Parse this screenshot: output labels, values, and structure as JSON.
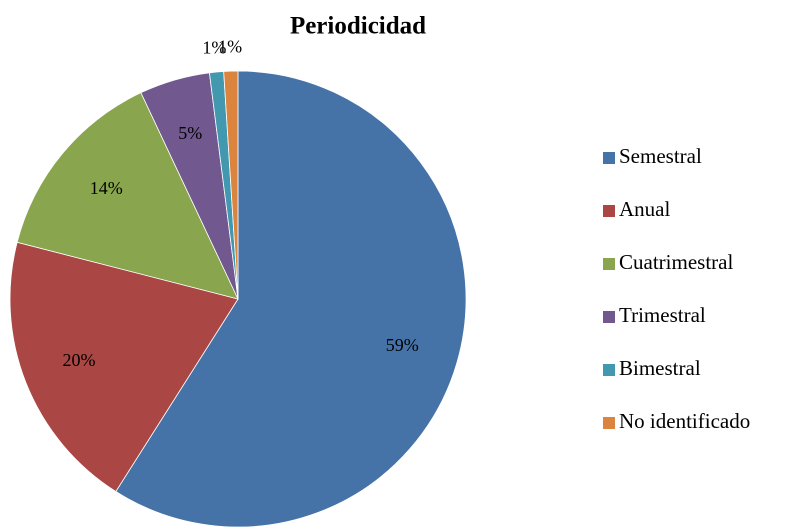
{
  "chart_data": {
    "type": "pie",
    "title": "Periodicidad",
    "categories": [
      "Semestral",
      "Anual",
      "Cuatrimestral",
      "Trimestral",
      "Bimestral",
      "No identificado"
    ],
    "values": [
      59,
      20,
      14,
      5,
      1,
      1
    ],
    "value_labels": [
      "59%",
      "20%",
      "14%",
      "5%",
      "1%",
      "1%"
    ],
    "colors": [
      "#4572a7",
      "#aa4643",
      "#89a54e",
      "#71588f",
      "#4198af",
      "#db843d"
    ],
    "legend": "right"
  }
}
